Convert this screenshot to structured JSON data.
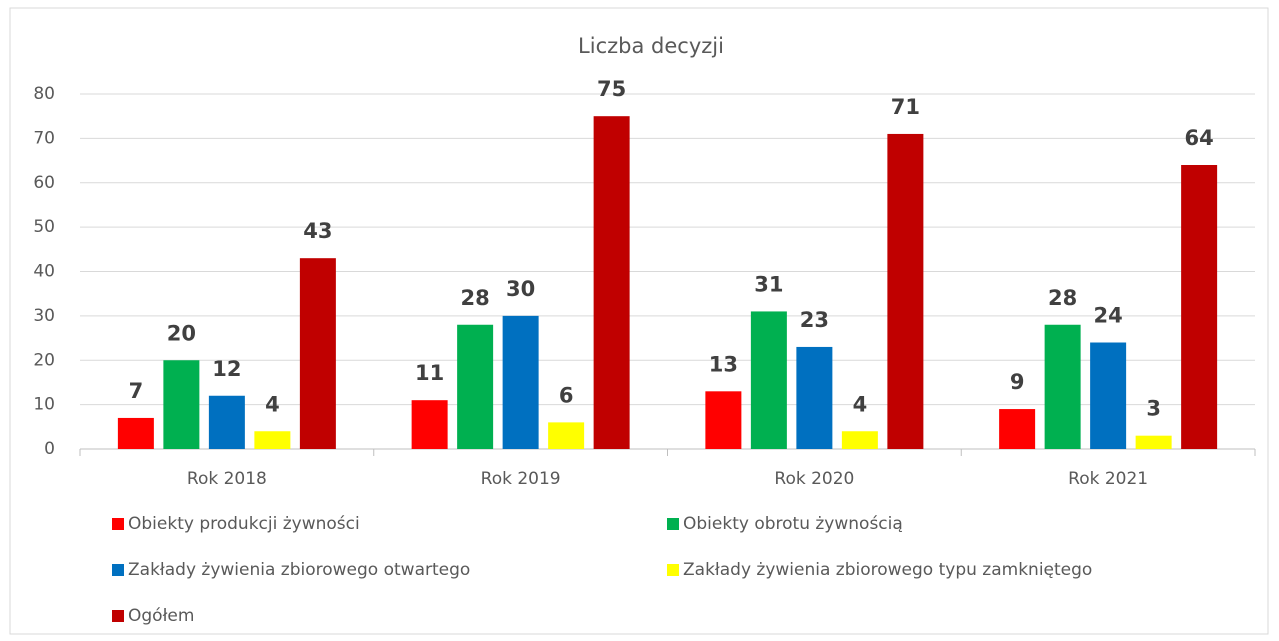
{
  "chart_data": {
    "type": "bar",
    "title": "Liczba decyzji",
    "categories": [
      "Rok 2018",
      "Rok 2019",
      "Rok 2020",
      "Rok 2021"
    ],
    "series": [
      {
        "name": "Obiekty produkcji żywności",
        "color": "#ff0000",
        "values": [
          7,
          11,
          13,
          9
        ]
      },
      {
        "name": "Obiekty obrotu żywnością",
        "color": "#00b050",
        "values": [
          20,
          28,
          31,
          28
        ]
      },
      {
        "name": "Zakłady żywienia zbiorowego otwartego",
        "color": "#0070c0",
        "values": [
          12,
          30,
          23,
          24
        ]
      },
      {
        "name": "Zakłady żywienia zbiorowego typu zamkniętego",
        "color": "#ffff00",
        "values": [
          4,
          6,
          4,
          3
        ]
      },
      {
        "name": "Ogółem",
        "color": "#c00000",
        "values": [
          43,
          75,
          71,
          64
        ]
      }
    ],
    "ylim": [
      0,
      80
    ],
    "yticks": [
      0,
      10,
      20,
      30,
      40,
      50,
      60,
      70,
      80
    ],
    "grid": true,
    "legend": "bottom"
  }
}
